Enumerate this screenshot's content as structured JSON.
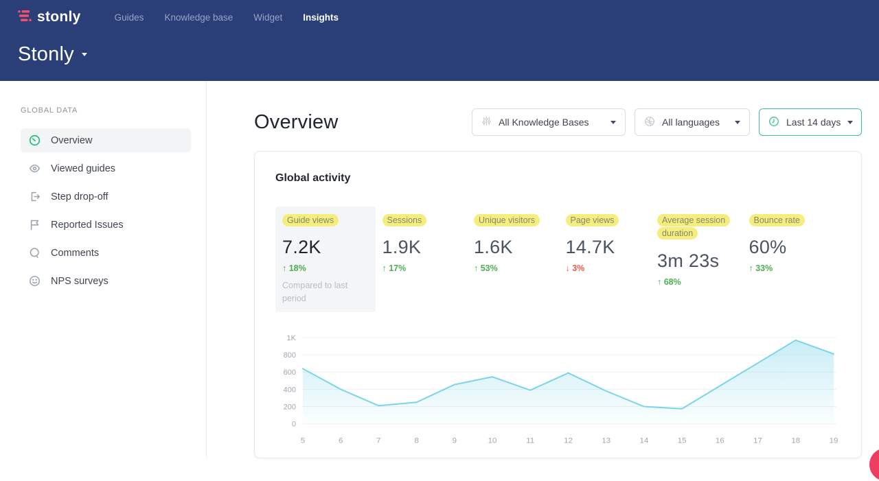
{
  "header": {
    "brand": "stonly",
    "nav": [
      {
        "label": "Guides",
        "active": false
      },
      {
        "label": "Knowledge base",
        "active": false
      },
      {
        "label": "Widget",
        "active": false
      },
      {
        "label": "Insights",
        "active": true
      }
    ],
    "workspace_title": "Stonly"
  },
  "sidebar": {
    "section_label": "GLOBAL DATA",
    "items": [
      {
        "label": "Overview",
        "icon": "gauge-icon",
        "active": true
      },
      {
        "label": "Viewed guides",
        "icon": "eye-icon",
        "active": false
      },
      {
        "label": "Step drop-off",
        "icon": "exit-icon",
        "active": false
      },
      {
        "label": "Reported Issues",
        "icon": "flag-icon",
        "active": false
      },
      {
        "label": "Comments",
        "icon": "comment-icon",
        "active": false
      },
      {
        "label": "NPS surveys",
        "icon": "smiley-icon",
        "active": false
      }
    ]
  },
  "main": {
    "page_title": "Overview",
    "filters": {
      "knowledge_bases": {
        "value": "All Knowledge Bases",
        "icon": "sliders-icon"
      },
      "languages": {
        "value": "All languages",
        "icon": "globe-icon"
      },
      "date_range": {
        "value": "Last 14 days",
        "icon": "clock-icon",
        "accent": "#3cc48e"
      }
    },
    "card": {
      "title": "Global activity",
      "metrics": [
        {
          "label": "Guide views",
          "value": "7.2K",
          "delta": "↑ 18%",
          "trend": "up",
          "selected": true,
          "note": "Compared to last period"
        },
        {
          "label": "Sessions",
          "value": "1.9K",
          "delta": "↑ 17%",
          "trend": "up",
          "selected": false
        },
        {
          "label": "Unique visitors",
          "value": "1.6K",
          "delta": "↑ 53%",
          "trend": "up",
          "selected": false
        },
        {
          "label": "Page views",
          "value": "14.7K",
          "delta": "↓ 3%",
          "trend": "down",
          "selected": false
        },
        {
          "label": "Average session duration",
          "value": "3m 23s",
          "delta": "↑ 68%",
          "trend": "up",
          "selected": false
        },
        {
          "label": "Bounce rate",
          "value": "60%",
          "delta": "↑ 33%",
          "trend": "up",
          "selected": false
        }
      ]
    }
  },
  "chart_data": {
    "type": "area",
    "title": "",
    "xlabel": "",
    "ylabel": "",
    "x": [
      5,
      6,
      7,
      8,
      9,
      10,
      11,
      12,
      13,
      14,
      15,
      16,
      17,
      18,
      19
    ],
    "values": [
      640,
      400,
      210,
      250,
      455,
      545,
      390,
      590,
      380,
      200,
      175,
      440,
      705,
      970,
      810
    ],
    "ylim": [
      0,
      1000
    ],
    "yticks": [
      0,
      200,
      400,
      600,
      800,
      1000
    ],
    "ytick_labels": [
      "0",
      "200",
      "400",
      "600",
      "800",
      "1K"
    ],
    "grid": true,
    "legend": "none",
    "line_color": "#7cd4ea",
    "fill_color": "rgba(124,212,234,0.40)"
  },
  "colors": {
    "header_bg": "#2a3e78",
    "brand_pink": "#f4516c",
    "positive_green": "#4caf50",
    "negative_red": "#f4564a",
    "highlight_yellow": "#f5ee7e",
    "accent_green": "#3cc48e",
    "chart_line": "#7cd4ea",
    "chat_bubble_pink": "#ee3d60"
  }
}
